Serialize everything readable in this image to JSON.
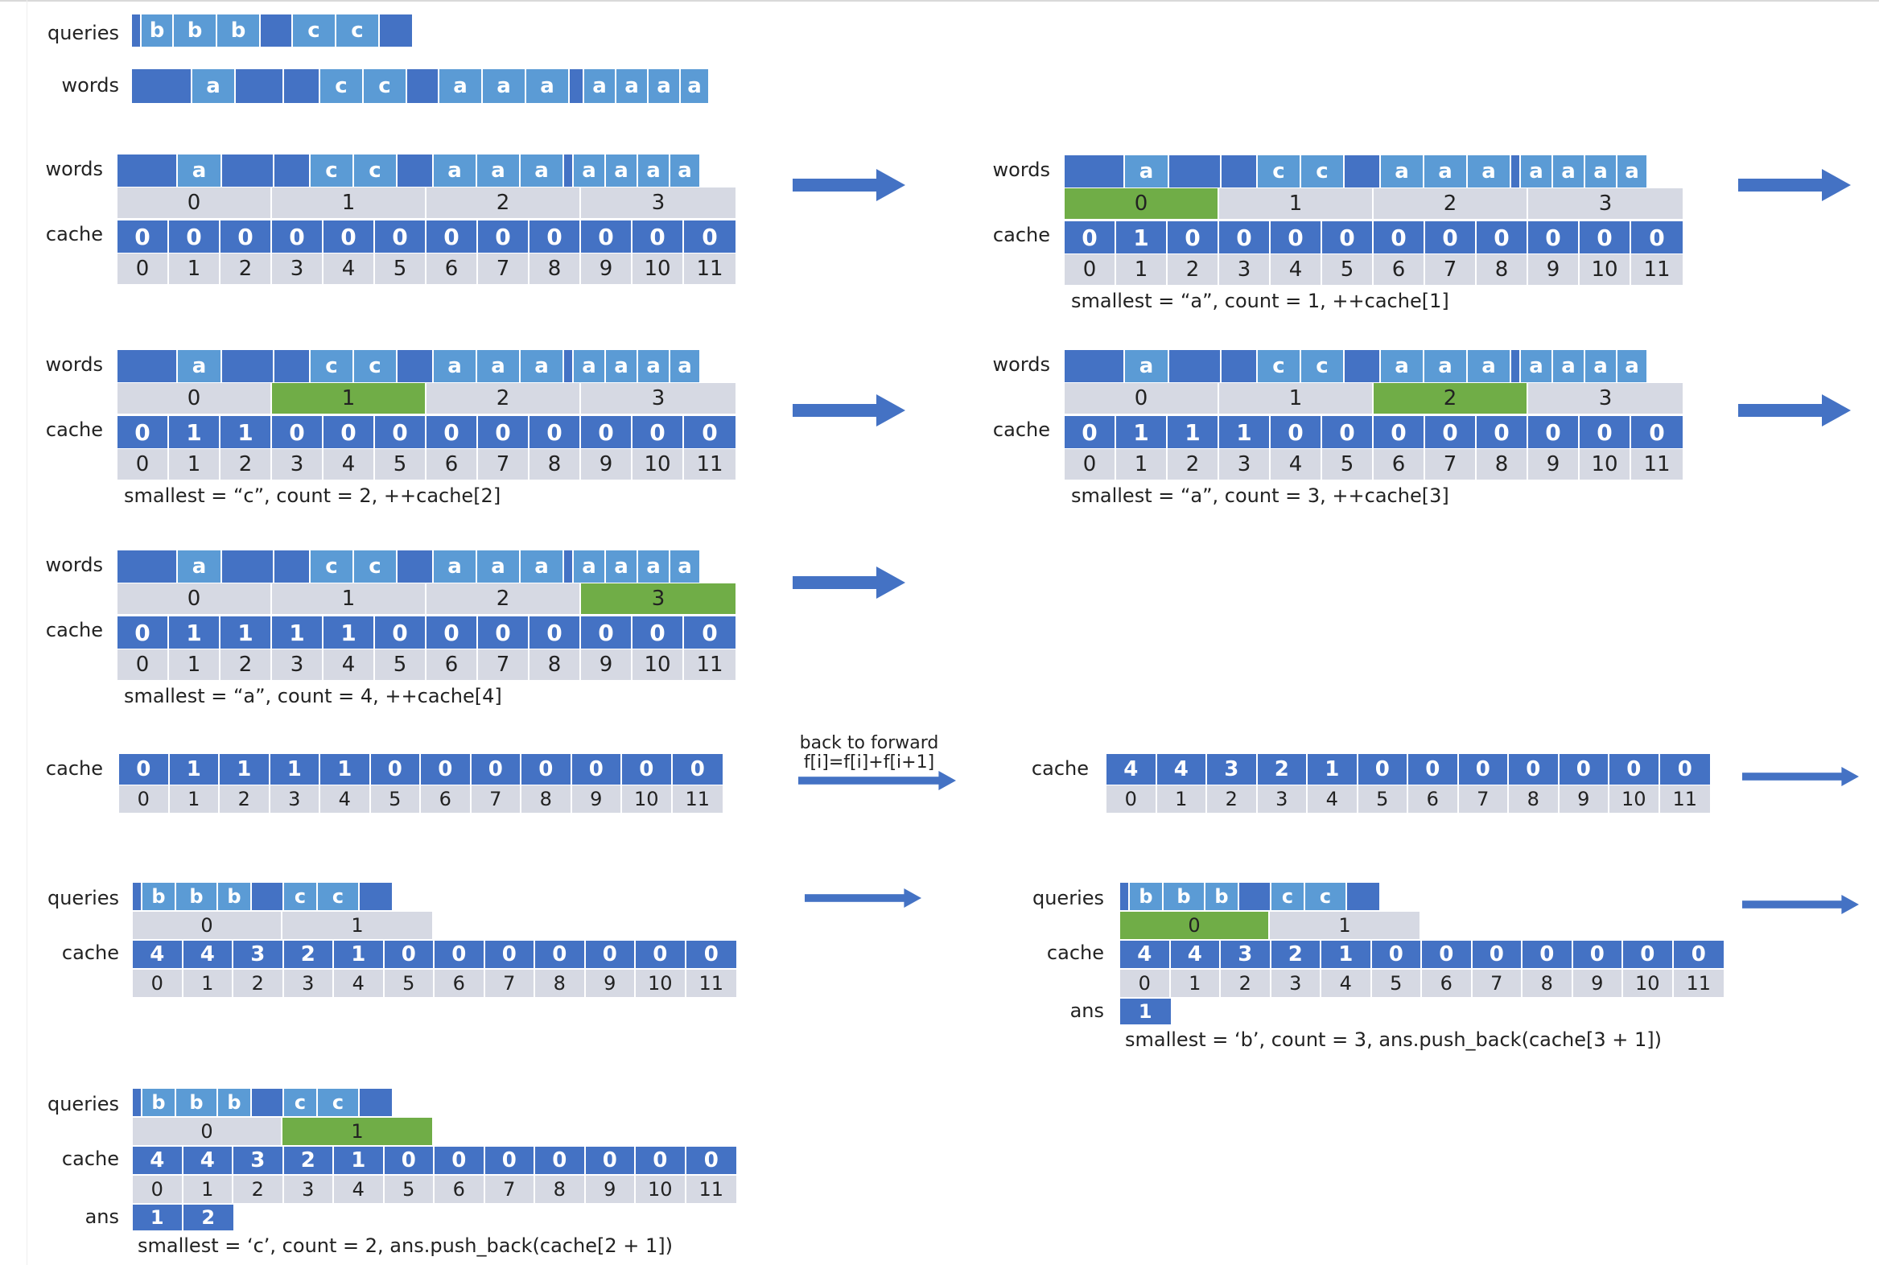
{
  "labels": {
    "queries": "queries",
    "words": "words",
    "cache": "cache",
    "ans": "ans"
  },
  "top": {
    "queries_row": [
      "",
      "b",
      "b",
      "b",
      "",
      "c",
      "c",
      ""
    ],
    "words_row": [
      "",
      "a",
      "",
      "",
      "c",
      "c",
      "",
      "a",
      "a",
      "a",
      "",
      "a",
      "a",
      "a",
      "a"
    ]
  },
  "words_row": [
    "",
    "a",
    "",
    "",
    "c",
    "c",
    "",
    "a",
    "a",
    "a",
    "",
    "a",
    "a",
    "a",
    "a"
  ],
  "word_index": [
    "0",
    "1",
    "2",
    "3"
  ],
  "positions": [
    "0",
    "1",
    "2",
    "3",
    "4",
    "5",
    "6",
    "7",
    "8",
    "9",
    "10",
    "11"
  ],
  "steps": [
    {
      "cache": [
        "0",
        "0",
        "0",
        "0",
        "0",
        "0",
        "0",
        "0",
        "0",
        "0",
        "0",
        "0"
      ],
      "highlight": -1,
      "note": ""
    },
    {
      "cache": [
        "0",
        "1",
        "0",
        "0",
        "0",
        "0",
        "0",
        "0",
        "0",
        "0",
        "0",
        "0"
      ],
      "highlight": 0,
      "note": "smallest = “a”, count = 1, ++cache[1]"
    },
    {
      "cache": [
        "0",
        "1",
        "1",
        "0",
        "0",
        "0",
        "0",
        "0",
        "0",
        "0",
        "0",
        "0"
      ],
      "highlight": 1,
      "note": "smallest = “c”, count = 2, ++cache[2]"
    },
    {
      "cache": [
        "0",
        "1",
        "1",
        "1",
        "0",
        "0",
        "0",
        "0",
        "0",
        "0",
        "0",
        "0"
      ],
      "highlight": 2,
      "note": "smallest = “a”, count = 3, ++cache[3]"
    },
    {
      "cache": [
        "0",
        "1",
        "1",
        "1",
        "1",
        "0",
        "0",
        "0",
        "0",
        "0",
        "0",
        "0"
      ],
      "highlight": 3,
      "note": "smallest = “a”, count = 4, ++cache[4]"
    }
  ],
  "before_cache": [
    "0",
    "1",
    "1",
    "1",
    "1",
    "0",
    "0",
    "0",
    "0",
    "0",
    "0",
    "0"
  ],
  "back_to_forward": {
    "line1": "back to forward",
    "line2": "f[i]=f[i]+f[i+1]"
  },
  "after_cache": [
    "4",
    "4",
    "3",
    "2",
    "1",
    "0",
    "0",
    "0",
    "0",
    "0",
    "0",
    "0"
  ],
  "queries_row": [
    "",
    "b",
    "b",
    "b",
    "",
    "c",
    "c",
    ""
  ],
  "query_index": [
    "0",
    "1"
  ],
  "query_steps": [
    {
      "highlight": -1,
      "ans": [],
      "note": ""
    },
    {
      "highlight": 0,
      "ans": [
        "1"
      ],
      "note": "smallest = ‘b’, count = 3, ans.push_back(cache[3 + 1])"
    },
    {
      "highlight": 1,
      "ans": [
        "1",
        "2"
      ],
      "note": "smallest = ‘c’, count = 2, ans.push_back(cache[2 + 1])"
    }
  ],
  "colors": {
    "dark_blue": "#4472c4",
    "light_blue": "#5b9bd5",
    "gray": "#d6d9e3",
    "green": "#70ad47"
  }
}
